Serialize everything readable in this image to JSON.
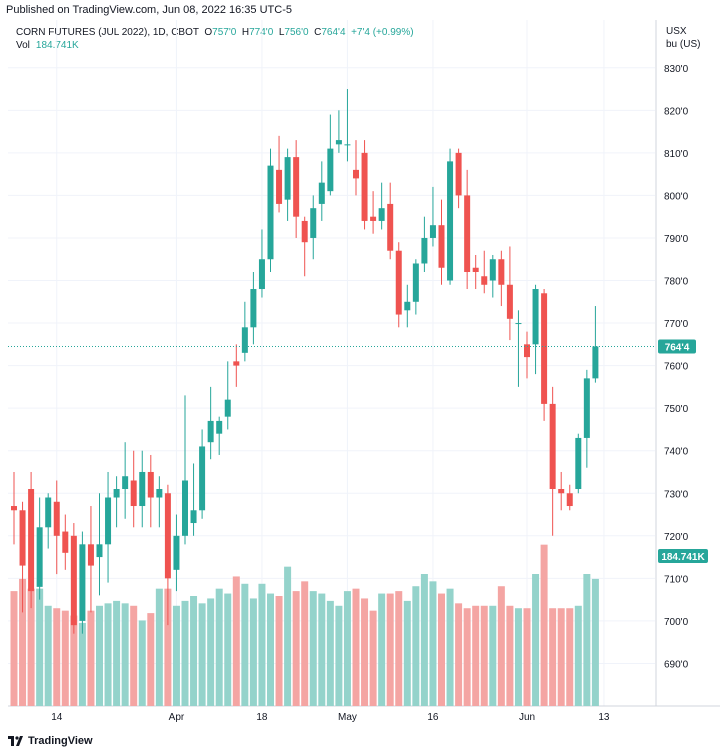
{
  "header": {
    "published": "Published on TradingView.com, Jun 08, 2022 16:35 UTC-5"
  },
  "legend": {
    "symbol": "CORN FUTURES (JUL 2022), 1D, CBOT",
    "open_label": "O",
    "open": "757'0",
    "high_label": "H",
    "high": "774'0",
    "low_label": "L",
    "low": "756'0",
    "close_label": "C",
    "close": "764'4",
    "change": "+7'4 (+0.99%)",
    "vol_label": "Vol",
    "vol_value": "184.741K"
  },
  "axis": {
    "currency": "USX",
    "unit": "bu (US)"
  },
  "footer": {
    "brand": "TradingView"
  },
  "colors": {
    "up": "#26a69a",
    "down": "#ef5350",
    "up_vol": "#94d3cb",
    "down_vol": "#f4a5a3"
  },
  "chart_data": {
    "type": "candlestick",
    "y_ticks": [
      "830'0",
      "820'0",
      "810'0",
      "800'0",
      "790'0",
      "780'0",
      "770'0",
      "760'0",
      "750'0",
      "740'0",
      "730'0",
      "720'0",
      "710'0",
      "700'0",
      "690'0"
    ],
    "y_tick_values": [
      830,
      820,
      810,
      800,
      790,
      780,
      770,
      760,
      750,
      740,
      730,
      720,
      710,
      700,
      690
    ],
    "ylim": [
      680,
      833
    ],
    "x_ticks": [
      {
        "label": "14",
        "index": 5
      },
      {
        "label": "Apr",
        "index": 19
      },
      {
        "label": "18",
        "index": 29
      },
      {
        "label": "May",
        "index": 39
      },
      {
        "label": "16",
        "index": 49
      },
      {
        "label": "Jun",
        "index": 60
      },
      {
        "label": "13",
        "index": 69
      }
    ],
    "last_price_label": "764'4",
    "last_price": 764.5,
    "last_volume_label": "184.741K",
    "candles": [
      {
        "o": 727,
        "h": 735,
        "l": 718,
        "c": 726
      },
      {
        "o": 726,
        "h": 728,
        "l": 702,
        "c": 713
      },
      {
        "o": 731,
        "h": 735,
        "l": 703,
        "c": 707
      },
      {
        "o": 708,
        "h": 729,
        "l": 705,
        "c": 722
      },
      {
        "o": 722,
        "h": 730,
        "l": 717,
        "c": 729
      },
      {
        "o": 728,
        "h": 733,
        "l": 711,
        "c": 720
      },
      {
        "o": 721,
        "h": 725,
        "l": 712,
        "c": 716
      },
      {
        "o": 720,
        "h": 723,
        "l": 697,
        "c": 699
      },
      {
        "o": 700,
        "h": 721,
        "l": 697,
        "c": 718
      },
      {
        "o": 718,
        "h": 727,
        "l": 702,
        "c": 713
      },
      {
        "o": 715,
        "h": 730,
        "l": 706,
        "c": 718
      },
      {
        "o": 718,
        "h": 735,
        "l": 709,
        "c": 729
      },
      {
        "o": 729,
        "h": 734,
        "l": 722,
        "c": 731
      },
      {
        "o": 731,
        "h": 742,
        "l": 724,
        "c": 734
      },
      {
        "o": 733,
        "h": 740,
        "l": 722,
        "c": 727
      },
      {
        "o": 727,
        "h": 740,
        "l": 722,
        "c": 735
      },
      {
        "o": 735,
        "h": 739,
        "l": 722,
        "c": 729
      },
      {
        "o": 729,
        "h": 734,
        "l": 722,
        "c": 731
      },
      {
        "o": 730,
        "h": 732,
        "l": 699,
        "c": 710
      },
      {
        "o": 712,
        "h": 725,
        "l": 707,
        "c": 720
      },
      {
        "o": 720,
        "h": 753,
        "l": 718,
        "c": 733
      },
      {
        "o": 723,
        "h": 737,
        "l": 720,
        "c": 726
      },
      {
        "o": 726,
        "h": 745,
        "l": 724,
        "c": 741
      },
      {
        "o": 742,
        "h": 755,
        "l": 738,
        "c": 747
      },
      {
        "o": 744,
        "h": 748,
        "l": 739,
        "c": 747
      },
      {
        "o": 748,
        "h": 761,
        "l": 745,
        "c": 752
      },
      {
        "o": 761,
        "h": 765,
        "l": 755,
        "c": 760
      },
      {
        "o": 763,
        "h": 775,
        "l": 761,
        "c": 769
      },
      {
        "o": 769,
        "h": 782,
        "l": 765,
        "c": 778
      },
      {
        "o": 778,
        "h": 792,
        "l": 776,
        "c": 785
      },
      {
        "o": 785,
        "h": 811,
        "l": 782,
        "c": 807
      },
      {
        "o": 806,
        "h": 814,
        "l": 796,
        "c": 798
      },
      {
        "o": 799,
        "h": 811,
        "l": 794,
        "c": 809
      },
      {
        "o": 809,
        "h": 813,
        "l": 790,
        "c": 795
      },
      {
        "o": 794,
        "h": 795,
        "l": 781,
        "c": 789
      },
      {
        "o": 790,
        "h": 800,
        "l": 785,
        "c": 797
      },
      {
        "o": 798,
        "h": 808,
        "l": 794,
        "c": 803
      },
      {
        "o": 801,
        "h": 819,
        "l": 800,
        "c": 811
      },
      {
        "o": 812,
        "h": 820,
        "l": 810,
        "c": 813
      },
      {
        "o": 812,
        "h": 825,
        "l": 808,
        "c": 812
      },
      {
        "o": 806,
        "h": 813,
        "l": 800,
        "c": 804
      },
      {
        "o": 810,
        "h": 813,
        "l": 792,
        "c": 794
      },
      {
        "o": 795,
        "h": 801,
        "l": 791,
        "c": 794
      },
      {
        "o": 794,
        "h": 803,
        "l": 792,
        "c": 797
      },
      {
        "o": 798,
        "h": 803,
        "l": 785,
        "c": 787
      },
      {
        "o": 787,
        "h": 789,
        "l": 769,
        "c": 772
      },
      {
        "o": 773,
        "h": 779,
        "l": 769,
        "c": 775
      },
      {
        "o": 775,
        "h": 785,
        "l": 772,
        "c": 784
      },
      {
        "o": 784,
        "h": 795,
        "l": 782,
        "c": 790
      },
      {
        "o": 790,
        "h": 802,
        "l": 788,
        "c": 793
      },
      {
        "o": 793,
        "h": 799,
        "l": 779,
        "c": 783
      },
      {
        "o": 780,
        "h": 811,
        "l": 779,
        "c": 808
      },
      {
        "o": 810,
        "h": 811,
        "l": 797,
        "c": 800
      },
      {
        "o": 800,
        "h": 806,
        "l": 778,
        "c": 782
      },
      {
        "o": 783,
        "h": 786,
        "l": 778,
        "c": 782
      },
      {
        "o": 781,
        "h": 787,
        "l": 777,
        "c": 779
      },
      {
        "o": 780,
        "h": 786,
        "l": 776,
        "c": 785
      },
      {
        "o": 785,
        "h": 787,
        "l": 774,
        "c": 779
      },
      {
        "o": 779,
        "h": 788,
        "l": 766,
        "c": 771
      },
      {
        "o": 770,
        "h": 773,
        "l": 755,
        "c": 770
      },
      {
        "o": 765,
        "h": 768,
        "l": 757,
        "c": 762
      },
      {
        "o": 765,
        "h": 779,
        "l": 758,
        "c": 778
      },
      {
        "o": 777,
        "h": 778,
        "l": 747,
        "c": 751
      },
      {
        "o": 751,
        "h": 755,
        "l": 720,
        "c": 731
      },
      {
        "o": 731,
        "h": 735,
        "l": 726,
        "c": 730
      },
      {
        "o": 730,
        "h": 732,
        "l": 726,
        "c": 727
      },
      {
        "o": 731,
        "h": 744,
        "l": 730,
        "c": 743
      },
      {
        "o": 743,
        "h": 759,
        "l": 736,
        "c": 757
      },
      {
        "o": 757,
        "h": 774,
        "l": 756,
        "c": 764.5
      }
    ],
    "volumes": [
      47,
      52,
      48,
      48,
      41,
      40,
      39,
      37,
      34,
      39,
      41,
      42,
      43,
      42,
      41,
      35,
      38,
      48,
      48,
      41,
      43,
      45,
      42,
      44,
      48,
      46,
      53,
      50,
      44,
      50,
      46,
      45,
      57,
      47,
      51,
      47,
      46,
      43,
      41,
      47,
      48,
      44,
      39,
      46,
      46,
      47,
      43,
      49,
      54,
      51,
      46,
      48,
      42,
      40,
      41,
      41,
      41,
      49,
      41,
      40,
      40,
      54,
      66,
      40,
      40,
      40,
      41,
      54,
      52
    ],
    "vol_scale_max": 72
  }
}
